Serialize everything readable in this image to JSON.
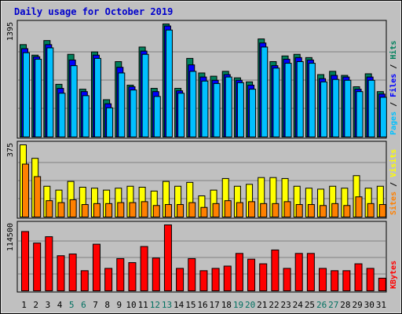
{
  "chart_data": {
    "type": "bar",
    "title": "Daily usage for October 2019",
    "categories": [
      "1",
      "2",
      "3",
      "4",
      "5",
      "6",
      "7",
      "8",
      "9",
      "10",
      "11",
      "12",
      "13",
      "14",
      "15",
      "16",
      "17",
      "18",
      "19",
      "20",
      "21",
      "22",
      "23",
      "24",
      "25",
      "26",
      "27",
      "28",
      "29",
      "30",
      "31"
    ],
    "weekend_days": [
      "5",
      "6",
      "12",
      "13",
      "19",
      "20",
      "26",
      "27"
    ],
    "colors": {
      "background": "#c0c0c0",
      "title": "#0000cc",
      "hits": "#00805c",
      "files": "#0000ff",
      "pages": "#00c0ff",
      "visits": "#ffff00",
      "sites": "#ff8000",
      "kbytes": "#ff0000",
      "weekend_label": "#007060",
      "weekday_label": "#000000"
    },
    "panels": [
      {
        "id": "hits-files-pages",
        "max_label": "1395",
        "ylim": [
          0,
          1395
        ],
        "legend": [
          {
            "label": "Pages",
            "color": "#00c0ff"
          },
          {
            "label": "Files",
            "color": "#0000ff"
          },
          {
            "label": "Hits",
            "color": "#00805c"
          }
        ],
        "series": [
          {
            "name": "Hits",
            "values": [
              1140,
              1010,
              1190,
              650,
              1020,
              590,
              1050,
              460,
              930,
              640,
              1110,
              600,
              1395,
              600,
              970,
              790,
              750,
              810,
              730,
              680,
              1210,
              930,
              1000,
              1020,
              980,
              770,
              810,
              760,
              620,
              780,
              560
            ]
          },
          {
            "name": "Files",
            "values": [
              1090,
              990,
              1140,
              600,
              950,
              560,
              1010,
              410,
              860,
              620,
              1060,
              560,
              1370,
              570,
              890,
              740,
              700,
              770,
              700,
              640,
              1160,
              880,
              960,
              980,
              950,
              720,
              760,
              740,
              590,
              740,
              530
            ]
          },
          {
            "name": "Pages",
            "values": [
              1040,
              960,
              1100,
              540,
              880,
              510,
              970,
              360,
              790,
              580,
              1020,
              500,
              1320,
              540,
              810,
              690,
              660,
              740,
              670,
              590,
              1110,
              850,
              910,
              930,
              910,
              680,
              710,
              700,
              560,
              700,
              490
            ]
          }
        ]
      },
      {
        "id": "visits-sites",
        "max_label": "375",
        "ylim": [
          0,
          375
        ],
        "legend": [
          {
            "label": "Sites",
            "color": "#ff8000"
          },
          {
            "label": "Visits",
            "color": "#ffff00"
          }
        ],
        "series": [
          {
            "name": "Visits",
            "values": [
              375,
              305,
              160,
              140,
              185,
              155,
              150,
              140,
              150,
              160,
              155,
              135,
              185,
              160,
              180,
              110,
              140,
              200,
              160,
              170,
              205,
              205,
              200,
              160,
              150,
              145,
              160,
              150,
              215,
              150,
              160
            ]
          },
          {
            "name": "Sites",
            "values": [
              275,
              210,
              85,
              75,
              90,
              65,
              70,
              70,
              75,
              75,
              80,
              60,
              65,
              65,
              75,
              50,
              70,
              85,
              75,
              80,
              70,
              70,
              80,
              65,
              65,
              60,
              70,
              60,
              105,
              70,
              65
            ]
          }
        ]
      },
      {
        "id": "kbytes",
        "max_label": "114500",
        "ylim": [
          0,
          114500
        ],
        "legend": [
          {
            "label": "KBytes",
            "color": "#ff0000"
          }
        ],
        "series": [
          {
            "name": "KBytes",
            "values": [
              103000,
              83000,
              94000,
              61000,
              64000,
              35000,
              81000,
              39000,
              56000,
              49000,
              77000,
              57000,
              114500,
              39000,
              56000,
              35000,
              39000,
              43000,
              65000,
              55000,
              47000,
              71000,
              39000,
              65000,
              65000,
              39000,
              35000,
              35000,
              47000,
              39000,
              22000
            ]
          }
        ]
      }
    ]
  }
}
